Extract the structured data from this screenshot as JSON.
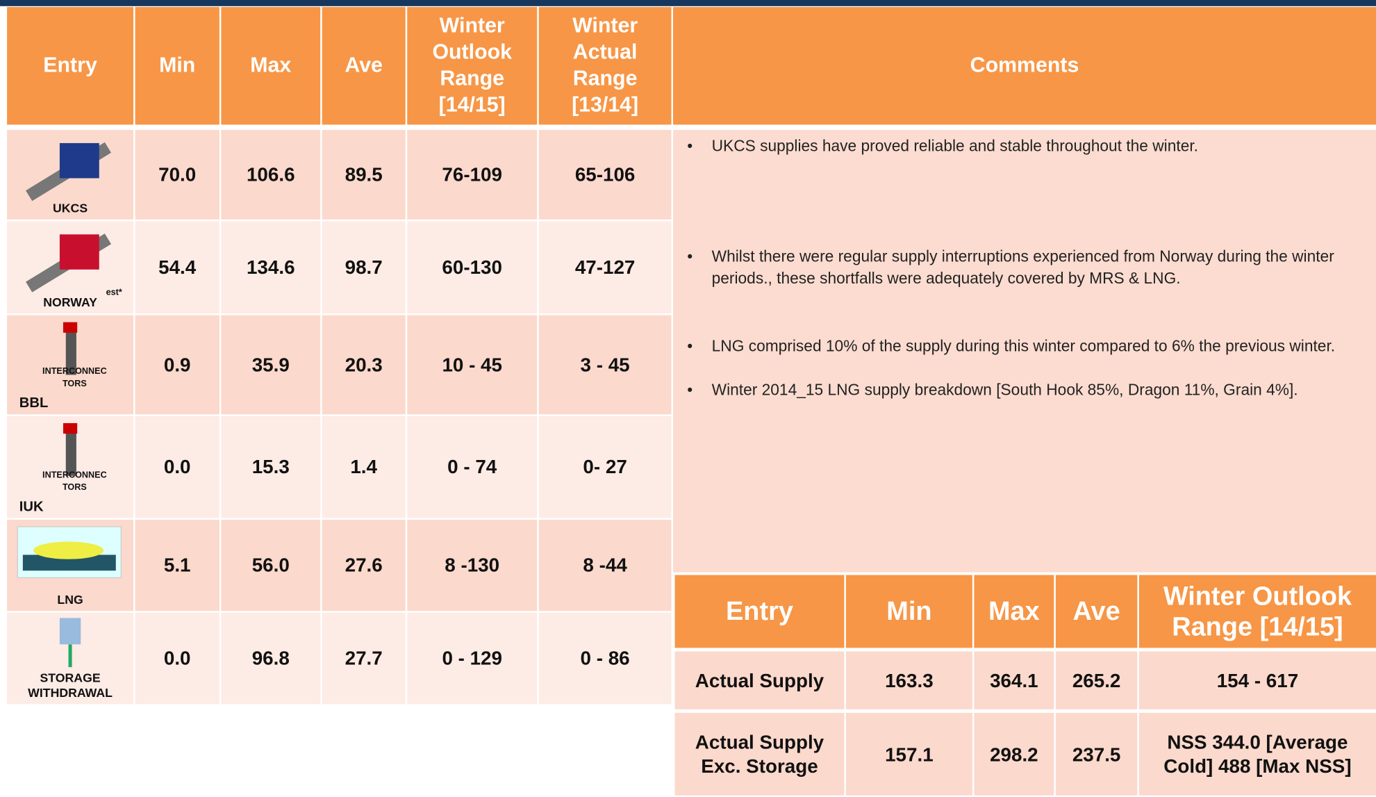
{
  "main_table": {
    "header": [
      "Entry",
      "Min",
      "Max",
      "Ave",
      "Winter Outlook Range [14/15]",
      "Winter Actual Range [13/14]",
      "Comments"
    ],
    "rows": [
      {
        "entry": "UKCS",
        "note": null,
        "values": [
          "70.0",
          "106.6",
          "89.5",
          "76-109",
          "65-106"
        ]
      },
      {
        "entry": "NORWAY",
        "note": "est*",
        "values": [
          "54.4",
          "134.6",
          "98.7",
          "60-130",
          "47-127"
        ]
      },
      {
        "entry": "BBL",
        "note": "INTERCONNEC TORS",
        "values": [
          "0.9",
          "35.9",
          "20.3",
          "10 - 45",
          "3 - 45"
        ]
      },
      {
        "entry": "IUK",
        "note": "INTERCONNEC TORS",
        "values": [
          "0.0",
          "15.3",
          "1.4",
          "0 - 74",
          "0- 27"
        ]
      },
      {
        "entry": "LNG",
        "note": null,
        "values": [
          "5.1",
          "56.0",
          "27.6",
          "8 -130",
          "8 -44"
        ]
      },
      {
        "entry": "STORAGE WITHDRAWAL",
        "note": null,
        "values": [
          "0.0",
          "96.8",
          "27.7",
          "0 - 129",
          "0 - 86"
        ]
      }
    ],
    "comments": [
      "UKCS supplies have proved reliable and stable throughout the winter.",
      "Whilst there were regular supply interruptions experienced from Norway during the winter periods., these shortfalls were adequately covered by MRS & LNG.",
      "LNG comprised 10% of the supply during this winter compared to 6% the previous winter.",
      "Winter 2014_15 LNG supply breakdown [South Hook  85%, Dragon  11%, Grain  4%]."
    ]
  },
  "summary_table": {
    "header": [
      "Entry",
      "Min",
      "Max",
      "Ave",
      "Winter Outlook Range [14/15]"
    ],
    "rows": [
      [
        "Actual Supply",
        "163.3",
        "364.1",
        "265.2",
        "154 - 617"
      ],
      [
        "Actual Supply Exc. Storage",
        "157.1",
        "298.2",
        "237.5",
        "NSS 344.0 [Average Cold] 488 [Max NSS]"
      ]
    ]
  }
}
